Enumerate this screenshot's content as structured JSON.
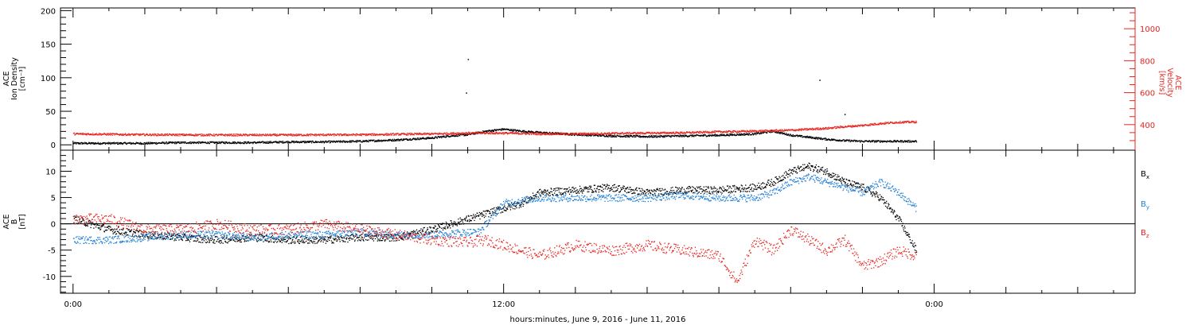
{
  "chart_data": [
    {
      "type": "scatter",
      "panel": "top",
      "left_label": [
        "ACE",
        "Ion Density",
        "[cm⁻³]"
      ],
      "right_label": [
        "ACE",
        "Velocity",
        "[km/s]"
      ],
      "xlabel": "hours:minutes,  June  9, 2016 - June 11, 2016",
      "x_ticks": [
        "0:00",
        "12:00",
        "0:00"
      ],
      "x_tick_hours": [
        0,
        12,
        24
      ],
      "xlim_hours": [
        -0.35,
        29.6
      ],
      "ylim_left": [
        -8,
        204
      ],
      "yticks_left": [
        0,
        50,
        100,
        150,
        200
      ],
      "ylim_right": [
        240,
        1130
      ],
      "yticks_right": [
        400,
        600,
        800,
        1000
      ],
      "right_axis_color": "#e8231f",
      "series": [
        {
          "name": "density",
          "color": "#000000",
          "axis": "left",
          "x_hours": [
            0,
            1,
            2,
            3,
            4,
            5,
            6,
            7,
            8,
            9,
            10,
            10.5,
            11,
            11.5,
            12,
            12.5,
            13,
            14,
            15,
            16,
            17,
            18,
            19,
            19.5,
            20,
            21,
            21.5,
            22,
            22.5,
            23,
            23.5
          ],
          "values": [
            3,
            3,
            3,
            4,
            4,
            4,
            5,
            5,
            6,
            8,
            11,
            14,
            16,
            21,
            24,
            21,
            19,
            16,
            14,
            13,
            14,
            15,
            17,
            21,
            15,
            9,
            7,
            6,
            6,
            6,
            6
          ]
        },
        {
          "name": "velocity",
          "color": "#e8231f",
          "axis": "right",
          "x_hours": [
            0,
            2,
            4,
            6,
            8,
            10,
            11,
            12,
            13,
            14,
            15,
            16,
            17,
            18,
            19,
            20,
            21,
            21.5,
            22,
            22.5,
            23,
            23.5
          ],
          "values": [
            345,
            340,
            338,
            338,
            340,
            345,
            350,
            350,
            345,
            345,
            348,
            350,
            352,
            358,
            362,
            368,
            380,
            390,
            398,
            410,
            418,
            420
          ]
        }
      ],
      "outliers": [
        {
          "x_hours": 11.0,
          "value": 128
        },
        {
          "x_hours": 10.95,
          "value": 78
        },
        {
          "x_hours": 20.8,
          "value": 97
        },
        {
          "x_hours": 21.5,
          "value": 46
        }
      ]
    },
    {
      "type": "scatter",
      "panel": "bottom",
      "left_label": [
        "ACE",
        "B",
        "[nT]"
      ],
      "ylim": [
        -13.2,
        14
      ],
      "yticks": [
        -10,
        -5,
        0,
        5,
        10
      ],
      "zero_line": true,
      "legend": [
        {
          "label": "B",
          "sub": "x",
          "color": "#000000"
        },
        {
          "label": "B",
          "sub": "y",
          "color": "#1e7fd8"
        },
        {
          "label": "B",
          "sub": "z",
          "color": "#e8231f"
        }
      ],
      "series": [
        {
          "name": "Bx",
          "color": "#000000",
          "x_hours": [
            0,
            0.5,
            1,
            2,
            3,
            4,
            5,
            6,
            7,
            8,
            9,
            10,
            11,
            11.5,
            12,
            12.5,
            13,
            14,
            15,
            16,
            17,
            18,
            19,
            19.5,
            20,
            20.5,
            21,
            21.5,
            22,
            22.5,
            23,
            23.5
          ],
          "values": [
            1,
            0,
            -1,
            -2,
            -2.5,
            -3,
            -2.5,
            -3,
            -3,
            -2.5,
            -2.5,
            -1,
            1,
            2,
            3,
            4,
            6,
            6.5,
            7,
            6,
            6.5,
            6.5,
            7,
            8,
            10,
            11,
            10,
            8,
            7,
            5,
            1,
            -5
          ]
        },
        {
          "name": "By",
          "color": "#1e7fd8",
          "x_hours": [
            0,
            1,
            2,
            3,
            4,
            5,
            6,
            7,
            8,
            9,
            10,
            11,
            11.3,
            12,
            13,
            14,
            15,
            16,
            17,
            18,
            19,
            19.5,
            20,
            20.5,
            21,
            21.5,
            22,
            22.5,
            23,
            23.5
          ],
          "values": [
            -3,
            -3,
            -2.5,
            -2,
            -2,
            -2.5,
            -2,
            -2,
            -1.5,
            -2,
            -2,
            -1.5,
            -1.5,
            4,
            5,
            5,
            5,
            5,
            5.5,
            5,
            5,
            6,
            8,
            9,
            8,
            7,
            6,
            8,
            6,
            3
          ]
        },
        {
          "name": "Bz",
          "color": "#e8231f",
          "x_hours": [
            0,
            1,
            2,
            3,
            4,
            5,
            6,
            7,
            8,
            9,
            10,
            11,
            11.5,
            12,
            13,
            14,
            15,
            16,
            17,
            18,
            18.5,
            19,
            19.5,
            20,
            20.5,
            21,
            21.5,
            22,
            22.5,
            23,
            23.5
          ],
          "values": [
            1,
            1,
            -1,
            -1,
            0,
            -1,
            -1,
            0,
            -1,
            -2,
            -3,
            -3.5,
            -3,
            -4,
            -6,
            -4,
            -5,
            -4,
            -5,
            -6,
            -11,
            -3,
            -5,
            -1,
            -3,
            -5,
            -3,
            -8,
            -7,
            -5,
            -6
          ]
        }
      ]
    }
  ]
}
